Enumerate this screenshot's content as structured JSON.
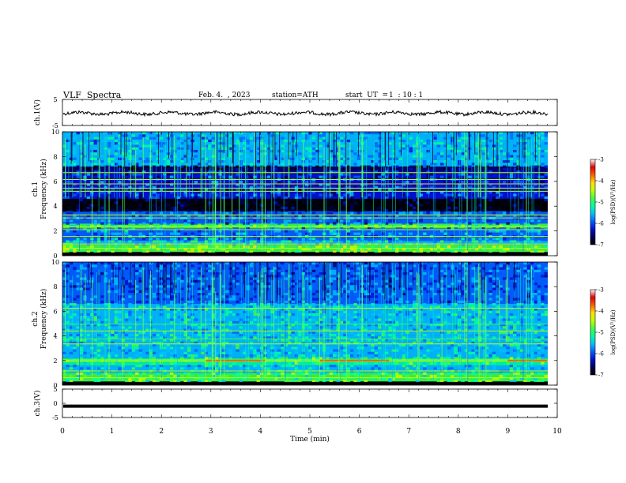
{
  "header": {
    "title": "VLF  Spectra",
    "date": "Feb. 4.  , 2023",
    "station": "station=ATH",
    "start_label": "start  UT  =",
    "start_value": "1  : 10 : 1"
  },
  "chart_data": [
    {
      "type": "line",
      "name": "ch1-waveform",
      "ylabel": "ch.1(V)",
      "ylim": [
        -5,
        5
      ],
      "yticks": [
        "5",
        "-5"
      ],
      "x_range_min": [
        0,
        9.8
      ],
      "approx_level": 0
    },
    {
      "type": "heatmap",
      "name": "ch1-spectrogram",
      "ylabel_top": "ch.1",
      "ylabel": "Frequency  (kHz)",
      "ylim": [
        0,
        10
      ],
      "yticks": [
        "0",
        "2",
        "4",
        "6",
        "8",
        "10"
      ],
      "colorbar_label": "log(PSD)(V²/Hz)",
      "colorbar_range": [
        -7,
        -3
      ],
      "colorbar_ticks": [
        "-3",
        "-4",
        "-5",
        "-6",
        "-7"
      ]
    },
    {
      "type": "heatmap",
      "name": "ch2-spectrogram",
      "ylabel_top": "ch.2",
      "ylabel": "Frequency  (kHz)",
      "ylim": [
        0,
        10
      ],
      "yticks": [
        "0",
        "2",
        "4",
        "6",
        "8",
        "10"
      ],
      "colorbar_label": "log(PSD)(V²/Hz)",
      "colorbar_range": [
        -7,
        -3
      ],
      "colorbar_ticks": [
        "-3",
        "-4",
        "-5",
        "-6",
        "-7"
      ]
    },
    {
      "type": "line",
      "name": "ch3-waveform",
      "ylabel": "ch.3(V)",
      "ylim": [
        -5,
        5
      ],
      "yticks": [
        "5",
        "0",
        "-5"
      ],
      "approx_level": -1
    }
  ],
  "xaxis": {
    "label": "Time  (min)",
    "range": [
      0,
      10
    ],
    "ticks": [
      "0",
      "1",
      "2",
      "3",
      "4",
      "5",
      "6",
      "7",
      "8",
      "9",
      "10"
    ]
  },
  "colors": {
    "waveform": "#000000",
    "colormap": [
      "#000000",
      "#000060",
      "#0010d0",
      "#0060ff",
      "#00c0ff",
      "#00ffa0",
      "#40ff40",
      "#c0ff00",
      "#ffe000",
      "#ff6000",
      "#e00000",
      "#ffffff"
    ]
  }
}
